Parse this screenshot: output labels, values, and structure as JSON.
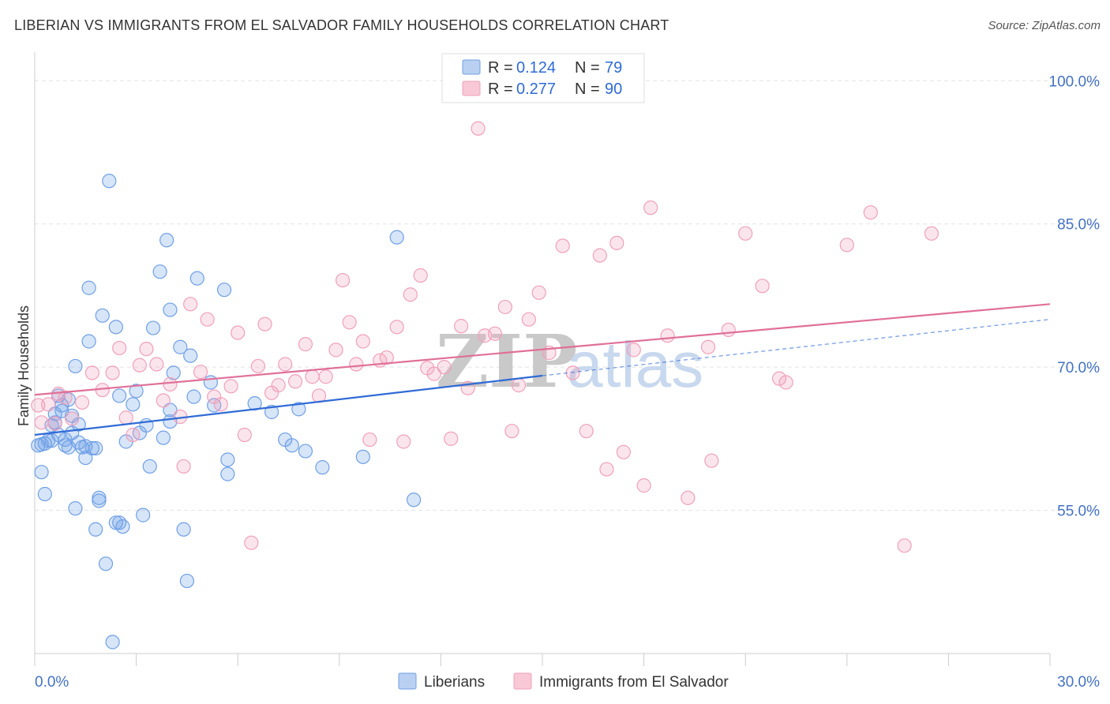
{
  "title": "LIBERIAN VS IMMIGRANTS FROM EL SALVADOR FAMILY HOUSEHOLDS CORRELATION CHART",
  "source": "Source: ZipAtlas.com",
  "watermark": {
    "part1": "ZIP",
    "part2": "atlas"
  },
  "legend_top": {
    "r_label": "R =",
    "n_label": "N =",
    "rows": [
      {
        "r": "0.124",
        "n": "79",
        "color": "#6fa0e6"
      },
      {
        "r": "0.277",
        "n": "90",
        "color": "#f0a0ba"
      }
    ]
  },
  "legend_bottom": [
    "Liberians",
    "Immigrants from El Salvador"
  ],
  "chart_data": {
    "type": "scatter",
    "ylabel": "Family Households",
    "xlim": [
      0,
      30
    ],
    "ylim": [
      40,
      103
    ],
    "y_ticks": [
      {
        "value": 100,
        "label": "100.0%"
      },
      {
        "value": 85,
        "label": "85.0%"
      },
      {
        "value": 70,
        "label": "70.0%"
      },
      {
        "value": 55,
        "label": "55.0%"
      }
    ],
    "x_ticks": [
      {
        "value": 0,
        "label": "0.0%"
      },
      {
        "value": 30,
        "label": "30.0%"
      }
    ],
    "grid": true,
    "series": [
      {
        "name": "Liberians",
        "color": "#6fa0e6",
        "line_color": "#2f6bd6",
        "trend": {
          "x1": 0,
          "y1": 62.9,
          "x2": 15,
          "y2": 69.1,
          "dash_to_x": 30,
          "dash_to_y": 75.0
        },
        "points": [
          [
            0.1,
            61.8
          ],
          [
            0.2,
            61.9
          ],
          [
            0.3,
            62.0
          ],
          [
            0.4,
            62.3
          ],
          [
            0.5,
            63.9
          ],
          [
            0.6,
            64.2
          ],
          [
            0.6,
            65.1
          ],
          [
            0.7,
            62.9
          ],
          [
            0.7,
            67.0
          ],
          [
            0.8,
            65.4
          ],
          [
            0.8,
            66.0
          ],
          [
            0.9,
            61.8
          ],
          [
            1.0,
            61.6
          ],
          [
            1.0,
            66.6
          ],
          [
            1.1,
            64.9
          ],
          [
            1.1,
            63.1
          ],
          [
            1.2,
            70.1
          ],
          [
            1.2,
            55.2
          ],
          [
            1.3,
            64.0
          ],
          [
            1.3,
            62.1
          ],
          [
            1.4,
            61.6
          ],
          [
            1.5,
            61.7
          ],
          [
            1.5,
            60.5
          ],
          [
            1.6,
            78.3
          ],
          [
            1.6,
            72.7
          ],
          [
            1.7,
            61.5
          ],
          [
            1.8,
            61.5
          ],
          [
            1.8,
            53.0
          ],
          [
            1.9,
            56.3
          ],
          [
            1.9,
            56.0
          ],
          [
            2.0,
            75.4
          ],
          [
            2.1,
            49.4
          ],
          [
            2.2,
            89.5
          ],
          [
            2.3,
            41.2
          ],
          [
            2.4,
            53.7
          ],
          [
            2.4,
            74.2
          ],
          [
            2.5,
            53.7
          ],
          [
            2.5,
            67.0
          ],
          [
            2.6,
            53.3
          ],
          [
            2.7,
            62.2
          ],
          [
            2.9,
            66.1
          ],
          [
            3.0,
            67.5
          ],
          [
            3.1,
            63.1
          ],
          [
            3.2,
            54.5
          ],
          [
            3.3,
            63.9
          ],
          [
            3.4,
            59.6
          ],
          [
            3.5,
            74.1
          ],
          [
            3.7,
            80.0
          ],
          [
            3.8,
            62.6
          ],
          [
            3.9,
            83.3
          ],
          [
            4.0,
            76.0
          ],
          [
            4.0,
            65.5
          ],
          [
            4.0,
            64.3
          ],
          [
            4.1,
            69.4
          ],
          [
            4.3,
            72.1
          ],
          [
            4.4,
            53.0
          ],
          [
            4.5,
            47.6
          ],
          [
            4.6,
            71.2
          ],
          [
            4.7,
            66.9
          ],
          [
            4.8,
            79.3
          ],
          [
            5.2,
            68.4
          ],
          [
            5.3,
            66.0
          ],
          [
            5.6,
            78.1
          ],
          [
            5.7,
            60.3
          ],
          [
            5.7,
            58.8
          ],
          [
            6.5,
            66.2
          ],
          [
            7.0,
            65.3
          ],
          [
            7.4,
            62.4
          ],
          [
            7.6,
            61.8
          ],
          [
            7.8,
            65.6
          ],
          [
            8.0,
            61.2
          ],
          [
            8.5,
            59.5
          ],
          [
            9.7,
            60.6
          ],
          [
            10.7,
            83.6
          ],
          [
            11.2,
            56.1
          ],
          [
            0.2,
            59.0
          ],
          [
            0.3,
            56.7
          ],
          [
            0.5,
            62.3
          ],
          [
            0.9,
            62.4
          ]
        ]
      },
      {
        "name": "Immigrants from El Salvador",
        "color": "#f0a0ba",
        "line_color": "#e07098",
        "trend": {
          "x1": 0,
          "y1": 67.1,
          "x2": 30,
          "y2": 76.6
        },
        "points": [
          [
            0.2,
            64.2
          ],
          [
            0.4,
            66.1
          ],
          [
            0.6,
            64.1
          ],
          [
            0.7,
            67.2
          ],
          [
            0.9,
            66.8
          ],
          [
            1.1,
            64.6
          ],
          [
            1.4,
            66.3
          ],
          [
            1.7,
            69.4
          ],
          [
            2.0,
            67.6
          ],
          [
            2.3,
            69.4
          ],
          [
            2.5,
            72.0
          ],
          [
            2.7,
            64.7
          ],
          [
            2.9,
            62.9
          ],
          [
            3.1,
            70.2
          ],
          [
            3.3,
            71.9
          ],
          [
            3.6,
            70.3
          ],
          [
            3.8,
            66.5
          ],
          [
            4.0,
            68.2
          ],
          [
            4.3,
            64.8
          ],
          [
            4.4,
            59.6
          ],
          [
            4.6,
            76.6
          ],
          [
            4.9,
            69.5
          ],
          [
            5.1,
            75.0
          ],
          [
            5.3,
            66.9
          ],
          [
            5.5,
            66.1
          ],
          [
            5.8,
            68.0
          ],
          [
            6.0,
            73.6
          ],
          [
            6.2,
            62.9
          ],
          [
            6.4,
            51.6
          ],
          [
            6.6,
            70.1
          ],
          [
            6.8,
            74.5
          ],
          [
            7.0,
            67.3
          ],
          [
            7.2,
            68.1
          ],
          [
            7.4,
            70.3
          ],
          [
            7.7,
            68.5
          ],
          [
            8.0,
            72.4
          ],
          [
            8.2,
            69.0
          ],
          [
            8.4,
            67.0
          ],
          [
            8.6,
            69.0
          ],
          [
            8.9,
            71.8
          ],
          [
            9.1,
            79.1
          ],
          [
            9.3,
            74.7
          ],
          [
            9.5,
            70.3
          ],
          [
            9.7,
            72.7
          ],
          [
            9.9,
            62.4
          ],
          [
            10.2,
            70.7
          ],
          [
            10.4,
            71.0
          ],
          [
            10.7,
            74.2
          ],
          [
            10.9,
            62.2
          ],
          [
            11.1,
            77.6
          ],
          [
            11.4,
            79.6
          ],
          [
            11.6,
            69.9
          ],
          [
            11.8,
            69.3
          ],
          [
            12.1,
            70.0
          ],
          [
            12.3,
            62.5
          ],
          [
            12.6,
            74.3
          ],
          [
            12.8,
            67.8
          ],
          [
            13.1,
            95.0
          ],
          [
            13.3,
            73.3
          ],
          [
            13.6,
            73.5
          ],
          [
            13.9,
            76.3
          ],
          [
            14.1,
            63.3
          ],
          [
            14.3,
            68.1
          ],
          [
            14.6,
            75.0
          ],
          [
            14.9,
            77.8
          ],
          [
            15.2,
            71.5
          ],
          [
            15.6,
            82.7
          ],
          [
            15.9,
            69.4
          ],
          [
            16.3,
            63.3
          ],
          [
            16.7,
            81.7
          ],
          [
            16.9,
            59.3
          ],
          [
            17.2,
            83.0
          ],
          [
            17.4,
            61.1
          ],
          [
            17.7,
            71.8
          ],
          [
            18.0,
            57.6
          ],
          [
            18.2,
            86.7
          ],
          [
            18.7,
            73.3
          ],
          [
            19.3,
            56.3
          ],
          [
            19.9,
            72.1
          ],
          [
            20.0,
            60.2
          ],
          [
            20.5,
            73.9
          ],
          [
            21.0,
            84.0
          ],
          [
            21.5,
            78.5
          ],
          [
            22.0,
            68.8
          ],
          [
            22.2,
            68.4
          ],
          [
            24.0,
            82.8
          ],
          [
            24.7,
            86.2
          ],
          [
            25.7,
            51.3
          ],
          [
            26.5,
            84.0
          ],
          [
            0.1,
            66.0
          ]
        ]
      }
    ]
  }
}
